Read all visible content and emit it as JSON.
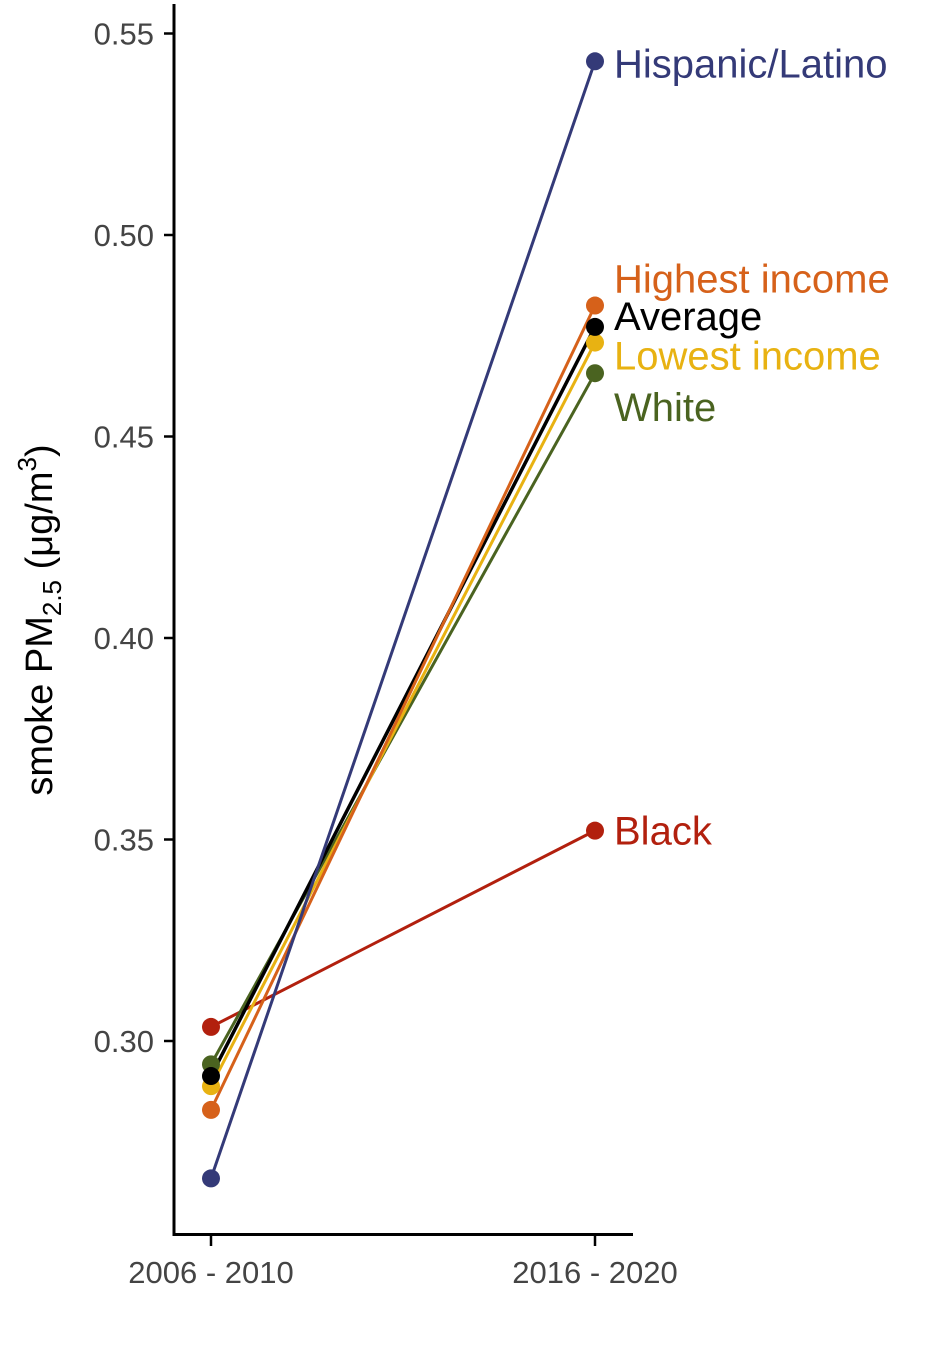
{
  "chart_data": {
    "type": "line",
    "title": "",
    "xlabel": "",
    "ylabel": {
      "main": "smoke PM",
      "subscript": "2.5",
      "unit_open": " (μg/m",
      "superscript": "3",
      "unit_close": ")"
    },
    "categories": [
      "2006 - 2010",
      "2016 - 2020"
    ],
    "ylim": [
      0.256,
      0.557
    ],
    "yticks": [
      0.3,
      0.35,
      0.4,
      0.45,
      0.5,
      0.55
    ],
    "ytick_labels": [
      "0.30",
      "0.35",
      "0.40",
      "0.45",
      "0.50",
      "0.55"
    ],
    "grid": false,
    "legend": "direct labels at right end of lines",
    "series": [
      {
        "name": "Black",
        "color": "#B2200E",
        "values": [
          0.3035,
          0.3522
        ]
      },
      {
        "name": "White",
        "color": "#4A6320",
        "values": [
          0.2942,
          0.4657
        ]
      },
      {
        "name": "Lowest income",
        "color": "#E8B212",
        "values": [
          0.2888,
          0.4733
        ]
      },
      {
        "name": "Average",
        "color": "#000000",
        "values": [
          0.2913,
          0.4772
        ]
      },
      {
        "name": "Highest income",
        "color": "#D6611A",
        "values": [
          0.2829,
          0.4825
        ]
      },
      {
        "name": "Hispanic/Latino",
        "color": "#343A78",
        "values": [
          0.2659,
          0.5431
        ]
      }
    ]
  }
}
